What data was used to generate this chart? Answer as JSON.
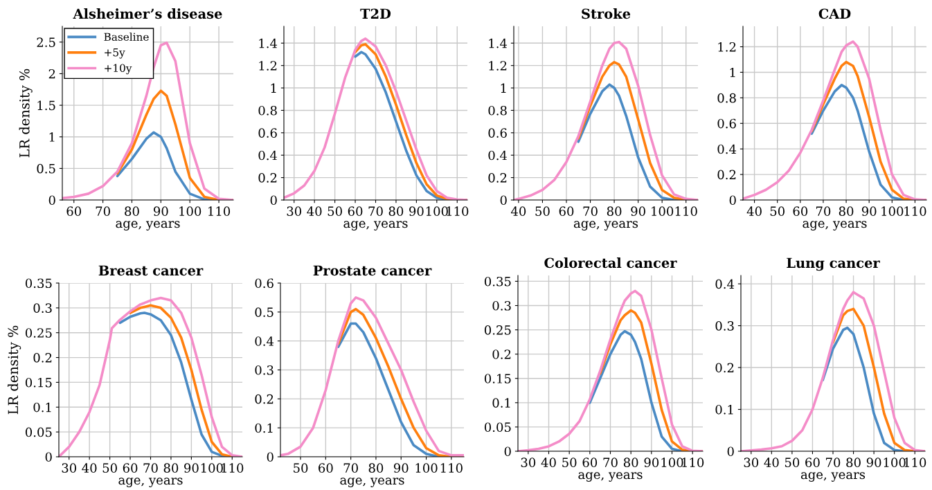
{
  "chart_data": [
    {
      "type": "line",
      "title": "Alsheimer’s disease",
      "xlabel": "age, years",
      "ylabel": "LR density %",
      "legend": "top left",
      "grid": true,
      "line_style": "solid",
      "xlim": [
        56,
        115
      ],
      "xticks": [
        60,
        70,
        80,
        90,
        100,
        110
      ],
      "ylim": [
        0,
        2.75
      ],
      "yticks": [
        0,
        0.5,
        1,
        1.5,
        2,
        2.5
      ],
      "x": [
        56,
        60,
        65,
        70,
        75,
        80,
        85,
        87.5,
        90,
        92,
        95,
        100,
        105,
        110,
        115
      ],
      "series": [
        {
          "name": "Baseline",
          "color": "#4a8ac4",
          "values": [
            null,
            null,
            null,
            null,
            0.38,
            0.65,
            0.97,
            1.07,
            1.0,
            0.82,
            0.45,
            0.1,
            0.01,
            0,
            0
          ]
        },
        {
          "name": "+5y",
          "color": "#ff7f0e",
          "values": [
            null,
            null,
            null,
            null,
            0.42,
            0.8,
            1.35,
            1.6,
            1.73,
            1.65,
            1.2,
            0.35,
            0.05,
            0,
            0
          ]
        },
        {
          "name": "+10y",
          "color": "#f48cc8",
          "values": [
            0.03,
            0.05,
            0.1,
            0.22,
            0.45,
            0.9,
            1.65,
            2.1,
            2.45,
            2.49,
            2.2,
            0.9,
            0.18,
            0.02,
            0
          ]
        }
      ]
    },
    {
      "type": "line",
      "title": "T2D",
      "xlabel": "age, years",
      "grid": true,
      "line_style": "solid",
      "xlim": [
        25,
        115
      ],
      "xticks": [
        30,
        40,
        50,
        60,
        70,
        80,
        90,
        100,
        110
      ],
      "ylim": [
        0,
        1.55
      ],
      "yticks": [
        0,
        0.2,
        0.4,
        0.6,
        0.8,
        1,
        1.2,
        1.4
      ],
      "x": [
        25,
        30,
        35,
        40,
        45,
        50,
        55,
        60,
        63,
        65,
        70,
        75,
        80,
        85,
        90,
        95,
        100,
        105,
        110,
        115
      ],
      "series": [
        {
          "color": "#4a8ac4",
          "values": [
            null,
            null,
            null,
            null,
            null,
            null,
            null,
            1.28,
            1.32,
            1.3,
            1.17,
            0.96,
            0.7,
            0.44,
            0.22,
            0.08,
            0.02,
            0.005,
            0,
            0
          ]
        },
        {
          "color": "#ff7f0e",
          "values": [
            null,
            null,
            null,
            null,
            null,
            null,
            null,
            1.32,
            1.38,
            1.39,
            1.3,
            1.1,
            0.85,
            0.58,
            0.33,
            0.14,
            0.04,
            0.01,
            0,
            0
          ]
        },
        {
          "color": "#f48cc8",
          "values": [
            0.02,
            0.06,
            0.13,
            0.26,
            0.47,
            0.77,
            1.09,
            1.34,
            1.42,
            1.44,
            1.37,
            1.2,
            0.97,
            0.71,
            0.45,
            0.22,
            0.08,
            0.02,
            0.005,
            0
          ]
        }
      ]
    },
    {
      "type": "line",
      "title": "Stroke",
      "xlabel": "age, years",
      "grid": true,
      "line_style": "solid",
      "xlim": [
        38,
        115
      ],
      "xticks": [
        40,
        50,
        60,
        70,
        80,
        90,
        100,
        110
      ],
      "ylim": [
        0,
        1.55
      ],
      "yticks": [
        0,
        0.2,
        0.4,
        0.6,
        0.8,
        1,
        1.2,
        1.4
      ],
      "x": [
        38,
        40,
        45,
        50,
        55,
        60,
        65,
        70,
        75,
        78,
        80,
        82,
        85,
        90,
        95,
        100,
        105,
        110,
        115
      ],
      "series": [
        {
          "color": "#4a8ac4",
          "values": [
            null,
            null,
            null,
            null,
            null,
            null,
            0.52,
            0.77,
            0.97,
            1.03,
            1.0,
            0.93,
            0.75,
            0.38,
            0.12,
            0.02,
            0,
            0,
            0
          ]
        },
        {
          "color": "#ff7f0e",
          "values": [
            null,
            null,
            null,
            null,
            null,
            null,
            0.55,
            0.84,
            1.1,
            1.2,
            1.23,
            1.21,
            1.1,
            0.72,
            0.33,
            0.09,
            0.02,
            0,
            0
          ]
        },
        {
          "color": "#f48cc8",
          "values": [
            0,
            0.01,
            0.04,
            0.09,
            0.18,
            0.34,
            0.57,
            0.88,
            1.2,
            1.35,
            1.4,
            1.41,
            1.35,
            1.02,
            0.58,
            0.22,
            0.05,
            0.01,
            0
          ]
        }
      ]
    },
    {
      "type": "line",
      "title": "CAD",
      "xlabel": "age, years",
      "grid": true,
      "line_style": "solid",
      "xlim": [
        35,
        115
      ],
      "xticks": [
        40,
        50,
        60,
        70,
        80,
        90,
        100,
        110
      ],
      "ylim": [
        0,
        1.36
      ],
      "yticks": [
        0,
        0.2,
        0.4,
        0.6,
        0.8,
        1,
        1.2
      ],
      "x": [
        35,
        40,
        45,
        50,
        55,
        60,
        65,
        70,
        75,
        78,
        80,
        83,
        85,
        90,
        95,
        100,
        105,
        110,
        115
      ],
      "series": [
        {
          "color": "#4a8ac4",
          "values": [
            null,
            null,
            null,
            null,
            null,
            null,
            0.52,
            0.7,
            0.85,
            0.9,
            0.88,
            0.8,
            0.7,
            0.38,
            0.12,
            0.02,
            0,
            0,
            0
          ]
        },
        {
          "color": "#ff7f0e",
          "values": [
            null,
            null,
            null,
            null,
            null,
            null,
            0.54,
            0.75,
            0.95,
            1.05,
            1.08,
            1.05,
            0.97,
            0.65,
            0.3,
            0.08,
            0.01,
            0,
            0
          ]
        },
        {
          "color": "#f48cc8",
          "values": [
            0.01,
            0.04,
            0.08,
            0.14,
            0.23,
            0.37,
            0.55,
            0.78,
            1.02,
            1.16,
            1.21,
            1.24,
            1.2,
            0.95,
            0.55,
            0.2,
            0.04,
            0.005,
            0
          ]
        }
      ]
    },
    {
      "type": "line",
      "title": "Breast cancer",
      "xlabel": "age, years",
      "ylabel": "LR density %",
      "grid": true,
      "line_style": "solid",
      "xlim": [
        25,
        115
      ],
      "xticks": [
        30,
        40,
        50,
        60,
        70,
        80,
        90,
        100,
        110
      ],
      "ylim": [
        0,
        0.35
      ],
      "yticks": [
        0,
        0.05,
        0.1,
        0.15,
        0.2,
        0.25,
        0.3,
        0.35
      ],
      "x": [
        25,
        30,
        35,
        40,
        45,
        50,
        51,
        55,
        60,
        65,
        67,
        70,
        75,
        80,
        85,
        90,
        95,
        100,
        105,
        110,
        115
      ],
      "series": [
        {
          "color": "#4a8ac4",
          "values": [
            null,
            null,
            null,
            null,
            null,
            null,
            null,
            0.27,
            0.282,
            0.289,
            0.29,
            0.287,
            0.275,
            0.245,
            0.19,
            0.115,
            0.045,
            0.01,
            0.002,
            0,
            0
          ]
        },
        {
          "color": "#ff7f0e",
          "values": [
            null,
            null,
            null,
            null,
            null,
            null,
            null,
            null,
            0.29,
            0.3,
            0.302,
            0.305,
            0.3,
            0.28,
            0.24,
            0.175,
            0.095,
            0.03,
            0.005,
            0,
            0
          ]
        },
        {
          "color": "#f48cc8",
          "values": [
            0,
            0.02,
            0.05,
            0.09,
            0.145,
            0.235,
            0.259,
            0.276,
            0.293,
            0.307,
            0.31,
            0.315,
            0.32,
            0.315,
            0.29,
            0.24,
            0.165,
            0.08,
            0.02,
            0.003,
            0
          ]
        }
      ]
    },
    {
      "type": "line",
      "title": "Prostate cancer",
      "xlabel": "age, years",
      "grid": true,
      "line_style": "solid",
      "xlim": [
        42,
        115
      ],
      "xticks": [
        50,
        60,
        70,
        80,
        90,
        100,
        110
      ],
      "ylim": [
        0,
        0.6
      ],
      "yticks": [
        0,
        0.1,
        0.2,
        0.3,
        0.4,
        0.5,
        0.6
      ],
      "x": [
        42,
        45,
        50,
        55,
        60,
        65,
        70,
        72,
        75,
        80,
        85,
        90,
        95,
        100,
        105,
        110,
        115
      ],
      "series": [
        {
          "color": "#4a8ac4",
          "values": [
            null,
            null,
            null,
            null,
            null,
            0.38,
            0.46,
            0.46,
            0.43,
            0.34,
            0.23,
            0.12,
            0.04,
            0.01,
            0,
            0,
            0
          ]
        },
        {
          "color": "#ff7f0e",
          "values": [
            null,
            null,
            null,
            null,
            null,
            0.39,
            0.5,
            0.51,
            0.49,
            0.41,
            0.31,
            0.2,
            0.1,
            0.03,
            0.005,
            0,
            0
          ]
        },
        {
          "color": "#f48cc8",
          "values": [
            0.005,
            0.01,
            0.035,
            0.1,
            0.23,
            0.4,
            0.53,
            0.55,
            0.54,
            0.48,
            0.39,
            0.3,
            0.19,
            0.09,
            0.02,
            0.005,
            0.005
          ]
        }
      ]
    },
    {
      "type": "line",
      "title": "Colorectal cancer",
      "xlabel": "age, years",
      "grid": true,
      "line_style": "solid",
      "xlim": [
        25,
        115
      ],
      "xticks": [
        30,
        40,
        50,
        60,
        70,
        80,
        90,
        100,
        110
      ],
      "ylim": [
        0,
        0.362
      ],
      "yticks": [
        0,
        0.05,
        0.1,
        0.15,
        0.2,
        0.25,
        0.3,
        0.35
      ],
      "x": [
        25,
        30,
        35,
        40,
        45,
        50,
        55,
        60,
        65,
        70,
        75,
        77,
        80,
        82,
        85,
        90,
        95,
        100,
        105,
        110,
        115
      ],
      "series": [
        {
          "color": "#4a8ac4",
          "values": [
            null,
            null,
            null,
            null,
            null,
            null,
            null,
            0.1,
            0.15,
            0.2,
            0.24,
            0.247,
            0.24,
            0.225,
            0.19,
            0.1,
            0.03,
            0.005,
            0,
            0,
            0
          ]
        },
        {
          "color": "#ff7f0e",
          "values": [
            null,
            null,
            null,
            null,
            null,
            null,
            null,
            null,
            0.16,
            0.22,
            0.27,
            0.28,
            0.29,
            0.285,
            0.265,
            0.18,
            0.085,
            0.02,
            0.003,
            0,
            0
          ]
        },
        {
          "color": "#f48cc8",
          "values": [
            0,
            0.002,
            0.005,
            0.01,
            0.02,
            0.036,
            0.062,
            0.107,
            0.165,
            0.23,
            0.29,
            0.31,
            0.325,
            0.33,
            0.32,
            0.25,
            0.15,
            0.055,
            0.01,
            0.001,
            0
          ]
        }
      ]
    },
    {
      "type": "line",
      "title": "Lung cancer",
      "xlabel": "age, years",
      "grid": true,
      "line_style": "solid",
      "xlim": [
        25,
        115
      ],
      "xticks": [
        30,
        40,
        50,
        60,
        70,
        80,
        90,
        100,
        110
      ],
      "ylim": [
        0,
        0.42
      ],
      "yticks": [
        0,
        0.1,
        0.2,
        0.3,
        0.4
      ],
      "x": [
        25,
        30,
        35,
        40,
        45,
        50,
        55,
        60,
        65,
        70,
        75,
        77,
        80,
        85,
        90,
        95,
        100,
        105,
        110,
        115
      ],
      "series": [
        {
          "color": "#4a8ac4",
          "values": [
            null,
            null,
            null,
            null,
            null,
            null,
            null,
            null,
            0.17,
            0.245,
            0.29,
            0.295,
            0.28,
            0.2,
            0.09,
            0.02,
            0.003,
            0,
            0,
            0
          ]
        },
        {
          "color": "#ff7f0e",
          "values": [
            null,
            null,
            null,
            null,
            null,
            null,
            null,
            null,
            null,
            0.26,
            0.325,
            0.335,
            0.34,
            0.3,
            0.2,
            0.09,
            0.02,
            0.003,
            0,
            0
          ]
        },
        {
          "color": "#f48cc8",
          "values": [
            0,
            0.002,
            0.004,
            0.007,
            0.012,
            0.025,
            0.05,
            0.1,
            0.175,
            0.265,
            0.34,
            0.36,
            0.38,
            0.365,
            0.3,
            0.19,
            0.08,
            0.02,
            0.003,
            0
          ]
        }
      ]
    }
  ]
}
